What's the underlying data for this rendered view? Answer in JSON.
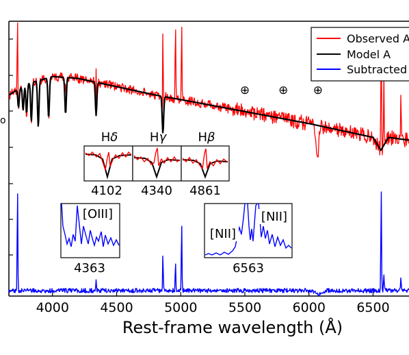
{
  "chart_data": {
    "type": "line",
    "xlabel": "Rest-frame wavelength (Å)",
    "xlim": [
      3660,
      6780
    ],
    "x_ticks": [
      {
        "value": 4000,
        "label": "4000"
      },
      {
        "value": 4500,
        "label": "4500"
      },
      {
        "value": 5000,
        "label": "5000"
      },
      {
        "value": 5500,
        "label": "5500"
      },
      {
        "value": 6000,
        "label": "6000"
      },
      {
        "value": 6500,
        "label": "6500"
      }
    ],
    "legend": [
      {
        "label": "Observed A",
        "color": "#ff0000"
      },
      {
        "label": "Model A",
        "color": "#000000"
      },
      {
        "label": "Subtracted",
        "color": "#0000ff"
      }
    ],
    "legend_position": "top-right",
    "telluric_symbol": "⊕",
    "telluric_wavelengths": [
      5500,
      5800,
      6070
    ],
    "model_continuum": [
      [
        3660,
        0.6
      ],
      [
        3800,
        0.66
      ],
      [
        4000,
        0.7
      ],
      [
        4200,
        0.69
      ],
      [
        4500,
        0.645
      ],
      [
        4800,
        0.6
      ],
      [
        5000,
        0.575
      ],
      [
        5500,
        0.51
      ],
      [
        6000,
        0.445
      ],
      [
        6300,
        0.4
      ],
      [
        6500,
        0.37
      ],
      [
        6560,
        0.3
      ],
      [
        6620,
        0.37
      ],
      [
        6780,
        0.355
      ]
    ],
    "absorption_lines": [
      {
        "wave": 3735,
        "depth": 0.1
      },
      {
        "wave": 3771,
        "depth": 0.13
      },
      {
        "wave": 3798,
        "depth": 0.16
      },
      {
        "wave": 3835,
        "depth": 0.21
      },
      {
        "wave": 3889,
        "depth": 0.25
      },
      {
        "wave": 3970,
        "depth": 0.22
      },
      {
        "wave": 4102,
        "depth": 0.2
      },
      {
        "wave": 4340,
        "depth": 0.18
      },
      {
        "wave": 4861,
        "depth": 0.2
      }
    ],
    "emission_lines": [
      {
        "wave": 3727,
        "observed_peak": 1.0,
        "subtracted_peak": 0.93
      },
      {
        "wave": 4102,
        "observed_peak": 0.7,
        "subtracted_peak": 0.035
      },
      {
        "wave": 4340,
        "observed_peak": 0.72,
        "subtracted_peak": 0.11
      },
      {
        "wave": 4861,
        "observed_peak": 1.0,
        "subtracted_peak": 0.32
      },
      {
        "wave": 4959,
        "observed_peak": 1.0,
        "subtracted_peak": 0.26
      },
      {
        "wave": 5007,
        "observed_peak": 1.0,
        "subtracted_peak": 0.62
      },
      {
        "wave": 6563,
        "observed_peak": 1.0,
        "subtracted_peak": 0.95
      },
      {
        "wave": 6584,
        "observed_peak": 0.75,
        "subtracted_peak": 0.15
      },
      {
        "wave": 6717,
        "observed_peak": 0.6,
        "subtracted_peak": 0.12
      }
    ],
    "insets": {
      "balmer": [
        {
          "title": "Hδ",
          "title_base": "H",
          "title_greek": "δ",
          "label": "4102"
        },
        {
          "title": "Hγ",
          "title_base": "H",
          "title_greek": "γ",
          "label": "4340"
        },
        {
          "title": "Hβ",
          "title_base": "H",
          "title_greek": "β",
          "label": "4861"
        }
      ],
      "oiii": {
        "line_label": "[OIII]",
        "label": "4363"
      },
      "halpha": {
        "line_label_left": "[NII]",
        "line_label_right": "[NII]",
        "label": "6563"
      }
    }
  }
}
